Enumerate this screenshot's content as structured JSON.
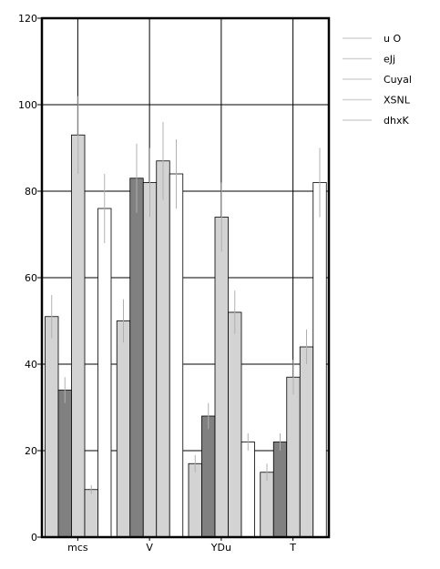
{
  "chart_data": {
    "type": "bar",
    "categories": [
      "mcs",
      "V",
      "YDu",
      "T"
    ],
    "series": [
      {
        "name": "u O",
        "values": [
          51,
          50,
          17,
          15
        ],
        "errors": [
          5,
          5,
          2,
          2
        ],
        "color": "#d3d3d3"
      },
      {
        "name": "eJj",
        "values": [
          34,
          83,
          28,
          22
        ],
        "errors": [
          3,
          8,
          3,
          2
        ],
        "color": "#808080"
      },
      {
        "name": "Cuyal",
        "values": [
          93,
          82,
          74,
          37
        ],
        "errors": [
          9,
          8,
          8,
          4
        ],
        "color": "#d3d3d3"
      },
      {
        "name": "XSNL",
        "values": [
          11,
          87,
          52,
          44
        ],
        "errors": [
          1,
          9,
          5,
          4
        ],
        "color": "#d3d3d3"
      },
      {
        "name": "dhxK",
        "values": [
          76,
          84,
          22,
          82
        ],
        "errors": [
          8,
          8,
          2,
          8
        ],
        "color": "#ffffff"
      }
    ],
    "title": "",
    "xlabel": "",
    "ylabel": "",
    "ylim": [
      0,
      120
    ],
    "yticks": [
      0,
      20,
      40,
      60,
      80,
      100,
      120
    ],
    "grid": true,
    "legend_position": "right",
    "error_bar_color": "#b0b0b0"
  }
}
